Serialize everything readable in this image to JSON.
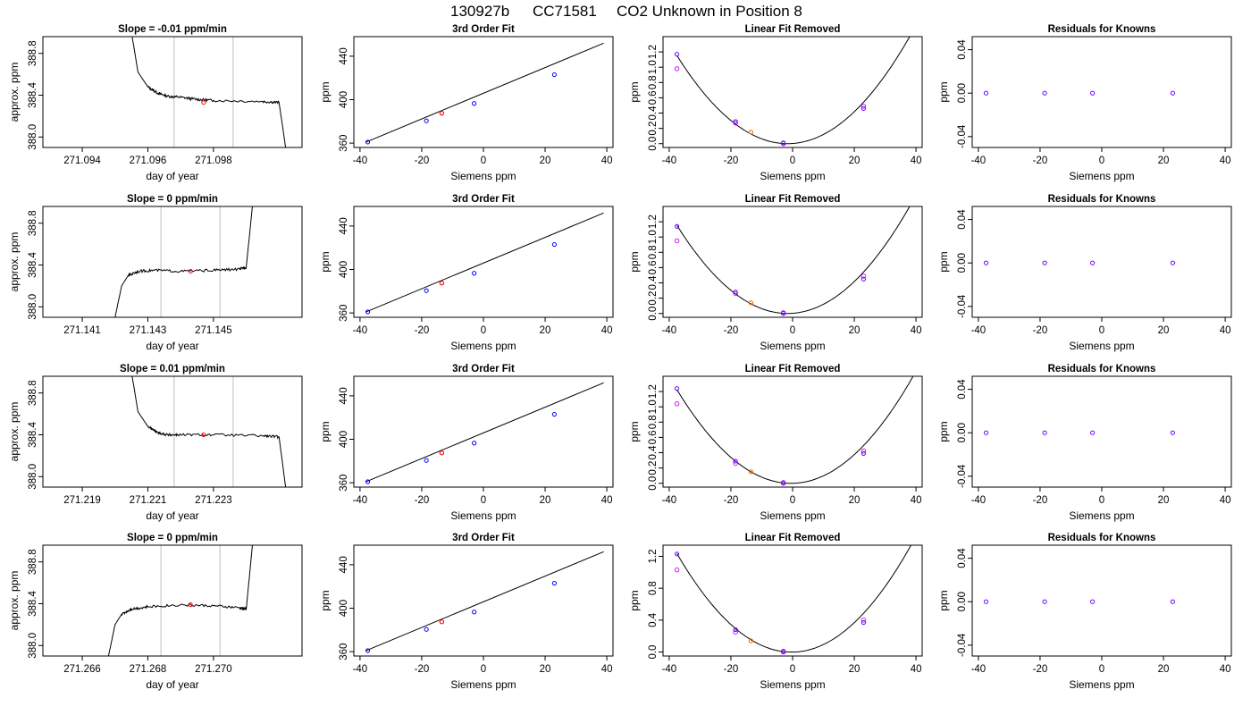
{
  "figure": {
    "title_parts": [
      "130927b",
      "CC71581",
      "CO2 Unknown in Position  8"
    ]
  },
  "colors": {
    "line": "#000000",
    "gridline": "#c8c8c8",
    "known": "#0000ff",
    "unknown": "#ff0000",
    "fitted": "#cc00ff",
    "frame": "#000000"
  },
  "chart_data": [
    {
      "type": "line",
      "row": 1,
      "title": "Slope =  -0.01  ppm/min",
      "xlabel": "day of year",
      "ylabel": "approx. ppm",
      "xticks": [
        "271.094",
        "271.096",
        "271.098"
      ],
      "xtick_values": [
        271.094,
        271.096,
        271.098
      ],
      "yticks": [
        "388.0",
        "388.4",
        "388.8"
      ],
      "ytick_values": [
        388.0,
        388.4,
        388.8
      ],
      "xlim": [
        271.0928,
        271.1007
      ],
      "ylim": [
        387.9,
        388.96
      ],
      "trace_points": [
        [
          271.0955,
          389.0
        ],
        [
          271.0957,
          388.62
        ],
        [
          271.096,
          388.48
        ],
        [
          271.0963,
          388.42
        ],
        [
          271.0966,
          388.39
        ],
        [
          271.097,
          388.38
        ],
        [
          271.0975,
          388.36
        ],
        [
          271.098,
          388.35
        ],
        [
          271.0995,
          388.34
        ],
        [
          271.1,
          388.33
        ],
        [
          271.1002,
          387.9
        ]
      ],
      "trace_style": "decay",
      "window": [
        271.0968,
        271.0986
      ],
      "marker": {
        "x": 271.0977,
        "y": 388.33
      },
      "grid": false,
      "legend": "none"
    },
    {
      "type": "scatter",
      "row": 1,
      "title": "3rd Order Fit",
      "xlabel": "Siemens ppm",
      "ylabel": "ppm",
      "xticks": [
        "-40",
        "-20",
        "0",
        "20",
        "40"
      ],
      "xtick_values": [
        -40,
        -20,
        0,
        20,
        40
      ],
      "yticks": [
        "360",
        "400",
        "440"
      ],
      "ytick_values": [
        360,
        400,
        440
      ],
      "xlim": [
        -42,
        42
      ],
      "ylim": [
        356,
        458
      ],
      "knowns": [
        [
          -37.5,
          361
        ],
        [
          -18.5,
          380.5
        ],
        [
          -3,
          396.5
        ],
        [
          23,
          423
        ]
      ],
      "unknown": [
        -13.5,
        387.5
      ],
      "line": [
        [
          -38,
          361
        ],
        [
          39,
          452
        ]
      ],
      "legend": "none"
    },
    {
      "type": "scatter",
      "row": 1,
      "title": "Linear Fit Removed",
      "xlabel": "Siemens ppm",
      "ylabel": "ppm",
      "xticks": [
        "-40",
        "-20",
        "0",
        "20",
        "40"
      ],
      "xtick_values": [
        -40,
        -20,
        0,
        20,
        40
      ],
      "yticks": [
        "0.0",
        "0.2",
        "0.4",
        "0.6",
        "0.8",
        "1.0",
        "1.2"
      ],
      "ytick_values": [
        0.0,
        0.2,
        0.4,
        0.6,
        0.8,
        1.0,
        1.2
      ],
      "xlim": [
        -42,
        42
      ],
      "ylim": [
        -0.05,
        1.4
      ],
      "knowns": [
        [
          -37.5,
          1.17
        ],
        [
          -18.5,
          0.29
        ],
        [
          -3,
          0.01
        ],
        [
          23,
          0.46
        ]
      ],
      "fitted": [
        [
          -37.5,
          0.98
        ],
        [
          -18.5,
          0.27
        ],
        [
          -3,
          0.0
        ],
        [
          23,
          0.49
        ]
      ],
      "unknown": [
        -13.5,
        0.15
      ],
      "curve": {
        "a": 0.000896,
        "b": 0.000193,
        "c": 0.0,
        "x0": -37.5,
        "x1": 39
      },
      "legend": "none"
    },
    {
      "type": "scatter",
      "row": 1,
      "title": "Residuals for Knowns",
      "xlabel": "Siemens ppm",
      "ylabel": "ppm",
      "xticks": [
        "-40",
        "-20",
        "0",
        "20",
        "40"
      ],
      "xtick_values": [
        -40,
        -20,
        0,
        20,
        40
      ],
      "yticks": [
        "-0.04",
        "0.00",
        "0.04"
      ],
      "ytick_values": [
        -0.04,
        0.0,
        0.04
      ],
      "xlim": [
        -42,
        42
      ],
      "ylim": [
        -0.05,
        0.052
      ],
      "knowns": [
        [
          -37.5,
          0.0
        ],
        [
          -18.5,
          0.0
        ],
        [
          -3,
          0.0
        ],
        [
          23,
          0.0
        ]
      ],
      "legend": "none"
    },
    {
      "type": "line",
      "row": 2,
      "title": "Slope =  0  ppm/min",
      "xlabel": "day of year",
      "ylabel": "approx. ppm",
      "xticks": [
        "271.141",
        "271.143",
        "271.145"
      ],
      "xtick_values": [
        271.141,
        271.143,
        271.145
      ],
      "yticks": [
        "388.0",
        "388.4",
        "388.8"
      ],
      "ytick_values": [
        388.0,
        388.4,
        388.8
      ],
      "xlim": [
        271.1398,
        271.1477
      ],
      "ylim": [
        387.9,
        388.96
      ],
      "trace_points": [
        [
          271.142,
          387.9
        ],
        [
          271.1422,
          388.2
        ],
        [
          271.1424,
          388.3
        ],
        [
          271.1427,
          388.34
        ],
        [
          271.1432,
          388.35
        ],
        [
          271.144,
          388.34
        ],
        [
          271.145,
          388.35
        ],
        [
          271.1458,
          388.36
        ],
        [
          271.146,
          388.38
        ],
        [
          271.1462,
          389.0
        ]
      ],
      "trace_style": "rise",
      "window": [
        271.1434,
        271.1452
      ],
      "marker": {
        "x": 271.1443,
        "y": 388.34
      },
      "grid": false,
      "legend": "none"
    },
    {
      "type": "scatter",
      "row": 2,
      "title": "3rd Order Fit",
      "xlabel": "Siemens ppm",
      "ylabel": "ppm",
      "xticks": [
        "-40",
        "-20",
        "0",
        "20",
        "40"
      ],
      "xtick_values": [
        -40,
        -20,
        0,
        20,
        40
      ],
      "yticks": [
        "360",
        "400",
        "440"
      ],
      "ytick_values": [
        360,
        400,
        440
      ],
      "xlim": [
        -42,
        42
      ],
      "ylim": [
        356,
        458
      ],
      "knowns": [
        [
          -37.5,
          361
        ],
        [
          -18.5,
          380.5
        ],
        [
          -3,
          396.5
        ],
        [
          23,
          423
        ]
      ],
      "unknown": [
        -13.5,
        387.5
      ],
      "line": [
        [
          -38,
          361
        ],
        [
          39,
          452
        ]
      ],
      "legend": "none"
    },
    {
      "type": "scatter",
      "row": 2,
      "title": "Linear Fit Removed",
      "xlabel": "Siemens ppm",
      "ylabel": "ppm",
      "xticks": [
        "-40",
        "-20",
        "0",
        "20",
        "40"
      ],
      "xtick_values": [
        -40,
        -20,
        0,
        20,
        40
      ],
      "yticks": [
        "0.0",
        "0.2",
        "0.4",
        "0.6",
        "0.8",
        "1.0",
        "1.2"
      ],
      "ytick_values": [
        0.0,
        0.2,
        0.4,
        0.6,
        0.8,
        1.0,
        1.2
      ],
      "xlim": [
        -42,
        42
      ],
      "ylim": [
        -0.05,
        1.4
      ],
      "knowns": [
        [
          -37.5,
          1.14
        ],
        [
          -18.5,
          0.28
        ],
        [
          -3,
          0.01
        ],
        [
          23,
          0.45
        ]
      ],
      "fitted": [
        [
          -37.5,
          0.95
        ],
        [
          -18.5,
          0.26
        ],
        [
          -3,
          0.0
        ],
        [
          23,
          0.49
        ]
      ],
      "unknown": [
        -13.5,
        0.14
      ],
      "curve": {
        "a": 0.000896,
        "b": 0.000193,
        "c": 0.0,
        "x0": -37.5,
        "x1": 39
      },
      "legend": "none"
    },
    {
      "type": "scatter",
      "row": 2,
      "title": "Residuals for Knowns",
      "xlabel": "Siemens ppm",
      "ylabel": "ppm",
      "xticks": [
        "-40",
        "-20",
        "0",
        "20",
        "40"
      ],
      "xtick_values": [
        -40,
        -20,
        0,
        20,
        40
      ],
      "yticks": [
        "-0.04",
        "0.00",
        "0.04"
      ],
      "ytick_values": [
        -0.04,
        0.0,
        0.04
      ],
      "xlim": [
        -42,
        42
      ],
      "ylim": [
        -0.05,
        0.052
      ],
      "knowns": [
        [
          -37.5,
          0.0
        ],
        [
          -18.5,
          0.0
        ],
        [
          -3,
          0.0
        ],
        [
          23,
          0.0
        ]
      ],
      "legend": "none"
    },
    {
      "type": "line",
      "row": 3,
      "title": "Slope =  0.01  ppm/min",
      "xlabel": "day of year",
      "ylabel": "approx. ppm",
      "xticks": [
        "271.219",
        "271.221",
        "271.223"
      ],
      "xtick_values": [
        271.219,
        271.221,
        271.223
      ],
      "yticks": [
        "388.0",
        "388.4",
        "388.8"
      ],
      "ytick_values": [
        388.0,
        388.4,
        388.8
      ],
      "xlim": [
        271.2178,
        271.2257
      ],
      "ylim": [
        387.9,
        388.96
      ],
      "trace_points": [
        [
          271.2205,
          389.0
        ],
        [
          271.2207,
          388.62
        ],
        [
          271.221,
          388.48
        ],
        [
          271.2213,
          388.42
        ],
        [
          271.2216,
          388.4
        ],
        [
          271.222,
          388.4
        ],
        [
          271.223,
          388.4
        ],
        [
          271.2245,
          388.39
        ],
        [
          271.225,
          388.38
        ],
        [
          271.2252,
          387.9
        ]
      ],
      "trace_style": "decay",
      "window": [
        271.2218,
        271.2236
      ],
      "marker": {
        "x": 271.2227,
        "y": 388.4
      },
      "grid": false,
      "legend": "none"
    },
    {
      "type": "scatter",
      "row": 3,
      "title": "3rd Order Fit",
      "xlabel": "Siemens ppm",
      "ylabel": "ppm",
      "xticks": [
        "-40",
        "-20",
        "0",
        "20",
        "40"
      ],
      "xtick_values": [
        -40,
        -20,
        0,
        20,
        40
      ],
      "yticks": [
        "360",
        "400",
        "440"
      ],
      "ytick_values": [
        360,
        400,
        440
      ],
      "xlim": [
        -42,
        42
      ],
      "ylim": [
        356,
        458
      ],
      "knowns": [
        [
          -37.5,
          361
        ],
        [
          -18.5,
          380.5
        ],
        [
          -3,
          396.5
        ],
        [
          23,
          423
        ]
      ],
      "unknown": [
        -13.5,
        387.5
      ],
      "line": [
        [
          -38,
          361
        ],
        [
          39,
          452
        ]
      ],
      "legend": "none"
    },
    {
      "type": "scatter",
      "row": 3,
      "title": "Linear Fit Removed",
      "xlabel": "Siemens ppm",
      "ylabel": "ppm",
      "xticks": [
        "-40",
        "-20",
        "0",
        "20",
        "40"
      ],
      "xtick_values": [
        -40,
        -20,
        0,
        20,
        40
      ],
      "yticks": [
        "0.0",
        "0.2",
        "0.4",
        "0.6",
        "0.8",
        "1.0",
        "1.2"
      ],
      "ytick_values": [
        0.0,
        0.2,
        0.4,
        0.6,
        0.8,
        1.0,
        1.2
      ],
      "xlim": [
        -42,
        42
      ],
      "ylim": [
        -0.05,
        1.4
      ],
      "knowns": [
        [
          -37.5,
          1.24
        ],
        [
          -18.5,
          0.29
        ],
        [
          -3,
          0.01
        ],
        [
          23,
          0.39
        ]
      ],
      "fitted": [
        [
          -37.5,
          1.04
        ],
        [
          -18.5,
          0.26
        ],
        [
          -3,
          0.0
        ],
        [
          23,
          0.42
        ]
      ],
      "unknown": [
        -13.5,
        0.15
      ],
      "curve": {
        "a": 0.000896,
        "b": -0.0018,
        "c": 0.0,
        "x0": -37.5,
        "x1": 39
      },
      "legend": "none"
    },
    {
      "type": "scatter",
      "row": 3,
      "title": "Residuals for Knowns",
      "xlabel": "Siemens ppm",
      "ylabel": "ppm",
      "xticks": [
        "-40",
        "-20",
        "0",
        "20",
        "40"
      ],
      "xtick_values": [
        -40,
        -20,
        0,
        20,
        40
      ],
      "yticks": [
        "-0.04",
        "0.00",
        "0.04"
      ],
      "ytick_values": [
        -0.04,
        0.0,
        0.04
      ],
      "xlim": [
        -42,
        42
      ],
      "ylim": [
        -0.05,
        0.052
      ],
      "knowns": [
        [
          -37.5,
          0.0
        ],
        [
          -18.5,
          0.0
        ],
        [
          -3,
          0.0
        ],
        [
          23,
          0.0
        ]
      ],
      "legend": "none"
    },
    {
      "type": "line",
      "row": 4,
      "title": "Slope =  0  ppm/min",
      "xlabel": "day of year",
      "ylabel": "approx. ppm",
      "xticks": [
        "271.266",
        "271.268",
        "271.270"
      ],
      "xtick_values": [
        271.266,
        271.268,
        271.27
      ],
      "yticks": [
        "388.0",
        "388.4",
        "388.8"
      ],
      "ytick_values": [
        388.0,
        388.4,
        388.8
      ],
      "xlim": [
        271.2648,
        271.2727
      ],
      "ylim": [
        387.9,
        388.96
      ],
      "trace_points": [
        [
          271.2668,
          387.9
        ],
        [
          271.267,
          388.2
        ],
        [
          271.2672,
          388.3
        ],
        [
          271.2675,
          388.35
        ],
        [
          271.268,
          388.37
        ],
        [
          271.269,
          388.39
        ],
        [
          271.27,
          388.38
        ],
        [
          271.2708,
          388.36
        ],
        [
          271.271,
          388.35
        ],
        [
          271.2712,
          389.0
        ]
      ],
      "trace_style": "rise",
      "window": [
        271.2684,
        271.2702
      ],
      "marker": {
        "x": 271.2693,
        "y": 388.39
      },
      "grid": false,
      "legend": "none"
    },
    {
      "type": "scatter",
      "row": 4,
      "title": "3rd Order Fit",
      "xlabel": "Siemens ppm",
      "ylabel": "ppm",
      "xticks": [
        "-40",
        "-20",
        "0",
        "20",
        "40"
      ],
      "xtick_values": [
        -40,
        -20,
        0,
        20,
        40
      ],
      "yticks": [
        "360",
        "400",
        "440"
      ],
      "ytick_values": [
        360,
        400,
        440
      ],
      "xlim": [
        -42,
        42
      ],
      "ylim": [
        356,
        458
      ],
      "knowns": [
        [
          -37.5,
          361
        ],
        [
          -18.5,
          380.5
        ],
        [
          -3,
          396.5
        ],
        [
          23,
          423
        ]
      ],
      "unknown": [
        -13.5,
        387.5
      ],
      "line": [
        [
          -38,
          361
        ],
        [
          39,
          452
        ]
      ],
      "legend": "none"
    },
    {
      "type": "scatter",
      "row": 4,
      "title": "Linear Fit Removed",
      "xlabel": "Siemens ppm",
      "ylabel": "ppm",
      "xticks": [
        "-40",
        "-20",
        "0",
        "20",
        "40"
      ],
      "xtick_values": [
        -40,
        -20,
        0,
        20,
        40
      ],
      "yticks": [
        "0.0",
        "0.4",
        "0.8",
        "1.2"
      ],
      "ytick_values": [
        0.0,
        0.4,
        0.8,
        1.2
      ],
      "xlim": [
        -42,
        42
      ],
      "ylim": [
        -0.05,
        1.34
      ],
      "knowns": [
        [
          -37.5,
          1.23
        ],
        [
          -18.5,
          0.28
        ],
        [
          -3,
          0.01
        ],
        [
          23,
          0.37
        ]
      ],
      "fitted": [
        [
          -37.5,
          1.03
        ],
        [
          -18.5,
          0.25
        ],
        [
          -3,
          0.0
        ],
        [
          23,
          0.4
        ]
      ],
      "unknown": [
        -13.5,
        0.14
      ],
      "curve": {
        "a": 0.000896,
        "b": -0.0021,
        "c": 0.0,
        "x0": -37.5,
        "x1": 39
      },
      "legend": "none"
    },
    {
      "type": "scatter",
      "row": 4,
      "title": "Residuals for Knowns",
      "xlabel": "Siemens ppm",
      "ylabel": "ppm",
      "xticks": [
        "-40",
        "-20",
        "0",
        "20",
        "40"
      ],
      "xtick_values": [
        -40,
        -20,
        0,
        20,
        40
      ],
      "yticks": [
        "-0.04",
        "0.00",
        "0.04"
      ],
      "ytick_values": [
        -0.04,
        0.0,
        0.04
      ],
      "xlim": [
        -42,
        42
      ],
      "ylim": [
        -0.05,
        0.052
      ],
      "knowns": [
        [
          -37.5,
          0.0
        ],
        [
          -18.5,
          0.0
        ],
        [
          -3,
          0.0
        ],
        [
          23,
          0.0
        ]
      ],
      "legend": "none"
    }
  ]
}
